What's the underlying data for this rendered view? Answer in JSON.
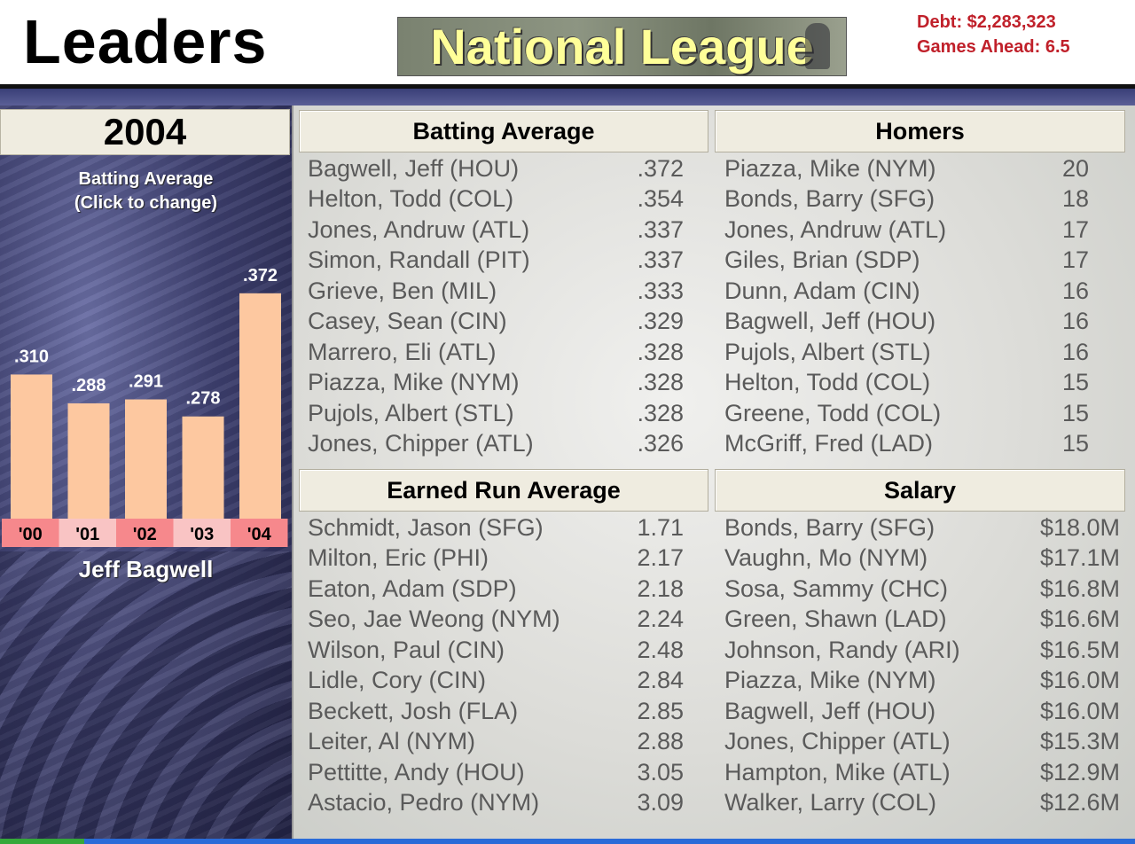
{
  "header": {
    "title": "Leaders",
    "league": "National League",
    "debt": "Debt: $2,283,323",
    "games_ahead": "Games Ahead: 6.5"
  },
  "sidebar": {
    "year": "2004",
    "stat_line1": "Batting Average",
    "stat_line2": "(Click to change)",
    "player": "Jeff Bagwell"
  },
  "colors": {
    "bar_fill": "#fdc8a0",
    "year_cell_a": "#f6888c",
    "year_cell_b": "#f9c4c4",
    "accent_red": "#c0202a"
  },
  "chart_data": {
    "type": "bar",
    "categories": [
      "'00",
      "'01",
      "'02",
      "'03",
      "'04"
    ],
    "values": [
      0.31,
      0.288,
      0.291,
      0.278,
      0.372
    ],
    "labels": [
      ".310",
      ".288",
      ".291",
      ".278",
      ".372"
    ],
    "title": "",
    "xlabel": "",
    "ylabel": "",
    "ylim": [
      0.2,
      0.38
    ],
    "grid": false
  },
  "boards": {
    "batting": {
      "title": "Batting Average",
      "rows": [
        {
          "name": "Bagwell, Jeff (HOU)",
          "value": ".372"
        },
        {
          "name": "Helton, Todd (COL)",
          "value": ".354"
        },
        {
          "name": "Jones, Andruw (ATL)",
          "value": ".337"
        },
        {
          "name": "Simon, Randall (PIT)",
          "value": ".337"
        },
        {
          "name": "Grieve, Ben (MIL)",
          "value": ".333"
        },
        {
          "name": "Casey, Sean (CIN)",
          "value": ".329"
        },
        {
          "name": "Marrero, Eli (ATL)",
          "value": ".328"
        },
        {
          "name": "Piazza, Mike (NYM)",
          "value": ".328"
        },
        {
          "name": "Pujols, Albert (STL)",
          "value": ".328"
        },
        {
          "name": "Jones, Chipper (ATL)",
          "value": ".326"
        }
      ]
    },
    "homers": {
      "title": "Homers",
      "rows": [
        {
          "name": "Piazza, Mike (NYM)",
          "value": "20"
        },
        {
          "name": "Bonds, Barry (SFG)",
          "value": "18"
        },
        {
          "name": "Jones, Andruw (ATL)",
          "value": "17"
        },
        {
          "name": "Giles, Brian (SDP)",
          "value": "17"
        },
        {
          "name": "Dunn, Adam (CIN)",
          "value": "16"
        },
        {
          "name": "Bagwell, Jeff (HOU)",
          "value": "16"
        },
        {
          "name": "Pujols, Albert (STL)",
          "value": "16"
        },
        {
          "name": "Helton, Todd (COL)",
          "value": "15"
        },
        {
          "name": "Greene, Todd (COL)",
          "value": "15"
        },
        {
          "name": "McGriff, Fred (LAD)",
          "value": "15"
        }
      ]
    },
    "era": {
      "title": "Earned Run Average",
      "rows": [
        {
          "name": "Schmidt, Jason (SFG)",
          "value": "1.71"
        },
        {
          "name": "Milton, Eric (PHI)",
          "value": "2.17"
        },
        {
          "name": "Eaton, Adam (SDP)",
          "value": "2.18"
        },
        {
          "name": "Seo, Jae Weong (NYM)",
          "value": "2.24"
        },
        {
          "name": "Wilson, Paul (CIN)",
          "value": "2.48"
        },
        {
          "name": "Lidle, Cory (CIN)",
          "value": "2.84"
        },
        {
          "name": "Beckett, Josh (FLA)",
          "value": "2.85"
        },
        {
          "name": "Leiter, Al (NYM)",
          "value": "2.88"
        },
        {
          "name": "Pettitte, Andy (HOU)",
          "value": "3.05"
        },
        {
          "name": "Astacio, Pedro (NYM)",
          "value": "3.09"
        }
      ]
    },
    "salary": {
      "title": "Salary",
      "rows": [
        {
          "name": "Bonds, Barry (SFG)",
          "value": "$18.0M"
        },
        {
          "name": "Vaughn, Mo (NYM)",
          "value": "$17.1M"
        },
        {
          "name": "Sosa, Sammy (CHC)",
          "value": "$16.8M"
        },
        {
          "name": "Green, Shawn (LAD)",
          "value": "$16.6M"
        },
        {
          "name": "Johnson, Randy (ARI)",
          "value": "$16.5M"
        },
        {
          "name": "Piazza, Mike (NYM)",
          "value": "$16.0M"
        },
        {
          "name": "Bagwell, Jeff (HOU)",
          "value": "$16.0M"
        },
        {
          "name": "Jones, Chipper (ATL)",
          "value": "$15.3M"
        },
        {
          "name": "Hampton, Mike (ATL)",
          "value": "$12.9M"
        },
        {
          "name": "Walker, Larry (COL)",
          "value": "$12.6M"
        }
      ]
    }
  }
}
